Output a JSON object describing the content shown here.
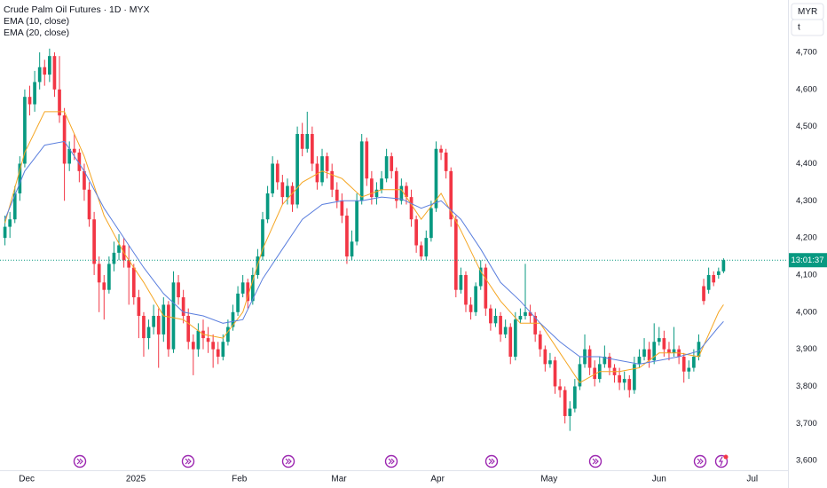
{
  "chart_data": {
    "type": "candlestick",
    "title": "Crude Palm Oil Futures · 1D · MYX",
    "currency": "MYR",
    "unit_button": "t",
    "countdown": "13:01:37",
    "up_color": "#089981",
    "down_color": "#f23645",
    "grid": false,
    "xlim": [
      -1,
      158
    ],
    "xticks": [
      {
        "value": 4.4,
        "label": "Dec"
      },
      {
        "value": 26.4,
        "label": "2025"
      },
      {
        "value": 47.3,
        "label": "Feb"
      },
      {
        "value": 67.4,
        "label": "Mar"
      },
      {
        "value": 87.3,
        "label": "Apr"
      },
      {
        "value": 109.8,
        "label": "May"
      },
      {
        "value": 132,
        "label": "Jun"
      },
      {
        "value": 150.8,
        "label": "Jul"
      }
    ],
    "ylim": [
      3574,
      4841
    ],
    "yticks": [
      {
        "value": 4700,
        "label": "4,700"
      },
      {
        "value": 4600,
        "label": "4,600"
      },
      {
        "value": 4500,
        "label": "4,500"
      },
      {
        "value": 4400,
        "label": "4,400"
      },
      {
        "value": 4300,
        "label": "4,300"
      },
      {
        "value": 4200,
        "label": "4,200"
      },
      {
        "value": 4100,
        "label": "4,100"
      },
      {
        "value": 4000,
        "label": "4,000"
      },
      {
        "value": 3900,
        "label": "3,900"
      },
      {
        "value": 3800,
        "label": "3,800"
      },
      {
        "value": 3700,
        "label": "3,700"
      },
      {
        "value": 3600,
        "label": "3,600"
      }
    ],
    "ohlc": [
      [
        4200,
        4260,
        4180,
        4230
      ],
      [
        4230,
        4270,
        4200,
        4250
      ],
      [
        4250,
        4340,
        4240,
        4320
      ],
      [
        4320,
        4420,
        4300,
        4400
      ],
      [
        4400,
        4600,
        4390,
        4580
      ],
      [
        4580,
        4610,
        4530,
        4560
      ],
      [
        4560,
        4650,
        4540,
        4620
      ],
      [
        4620,
        4700,
        4600,
        4660
      ],
      [
        4660,
        4680,
        4610,
        4640
      ],
      [
        4640,
        4710,
        4620,
        4690
      ],
      [
        4690,
        4700,
        4580,
        4600
      ],
      [
        4600,
        4690,
        4510,
        4530
      ],
      [
        4530,
        4550,
        4300,
        4400
      ],
      [
        4400,
        4460,
        4380,
        4440
      ],
      [
        4440,
        4480,
        4410,
        4430
      ],
      [
        4430,
        4440,
        4350,
        4380
      ],
      [
        4380,
        4400,
        4300,
        4330
      ],
      [
        4330,
        4350,
        4230,
        4250
      ],
      [
        4250,
        4270,
        4100,
        4130
      ],
      [
        4130,
        4150,
        4000,
        4080
      ],
      [
        4080,
        4100,
        3980,
        4060
      ],
      [
        4060,
        4150,
        4050,
        4130
      ],
      [
        4130,
        4190,
        4110,
        4160
      ],
      [
        4160,
        4210,
        4140,
        4180
      ],
      [
        4180,
        4200,
        4120,
        4140
      ],
      [
        4140,
        4180,
        4020,
        4120
      ],
      [
        4120,
        4130,
        4020,
        4040
      ],
      [
        4040,
        4060,
        3930,
        3990
      ],
      [
        3990,
        4000,
        3880,
        3930
      ],
      [
        3930,
        3980,
        3900,
        3960
      ],
      [
        3960,
        4020,
        3940,
        3990
      ],
      [
        3990,
        4010,
        3850,
        3940
      ],
      [
        3940,
        4040,
        3920,
        4020
      ],
      [
        4020,
        4030,
        3880,
        3900
      ],
      [
        3900,
        4110,
        3890,
        4080
      ],
      [
        4080,
        4100,
        4020,
        4040
      ],
      [
        4040,
        4060,
        3970,
        3990
      ],
      [
        3990,
        4010,
        3900,
        3920
      ],
      [
        3920,
        3940,
        3830,
        3900
      ],
      [
        3900,
        3970,
        3880,
        3950
      ],
      [
        3950,
        3980,
        3900,
        3930
      ],
      [
        3930,
        3960,
        3890,
        3920
      ],
      [
        3920,
        3940,
        3850,
        3900
      ],
      [
        3900,
        3920,
        3860,
        3880
      ],
      [
        3880,
        3940,
        3870,
        3920
      ],
      [
        3920,
        3980,
        3910,
        3960
      ],
      [
        3960,
        4020,
        3950,
        4000
      ],
      [
        4000,
        4070,
        3990,
        4050
      ],
      [
        4050,
        4100,
        4040,
        4080
      ],
      [
        4080,
        4090,
        4010,
        4030
      ],
      [
        4030,
        4120,
        4020,
        4100
      ],
      [
        4100,
        4170,
        4090,
        4150
      ],
      [
        4150,
        4270,
        4140,
        4250
      ],
      [
        4250,
        4340,
        4240,
        4320
      ],
      [
        4320,
        4420,
        4310,
        4400
      ],
      [
        4400,
        4410,
        4330,
        4350
      ],
      [
        4350,
        4370,
        4290,
        4310
      ],
      [
        4310,
        4360,
        4290,
        4340
      ],
      [
        4340,
        4350,
        4270,
        4290
      ],
      [
        4290,
        4500,
        4280,
        4480
      ],
      [
        4480,
        4510,
        4420,
        4440
      ],
      [
        4440,
        4540,
        4430,
        4480
      ],
      [
        4480,
        4500,
        4380,
        4400
      ],
      [
        4400,
        4420,
        4330,
        4350
      ],
      [
        4350,
        4440,
        4340,
        4420
      ],
      [
        4420,
        4430,
        4360,
        4380
      ],
      [
        4380,
        4400,
        4310,
        4330
      ],
      [
        4330,
        4350,
        4280,
        4300
      ],
      [
        4300,
        4320,
        4240,
        4260
      ],
      [
        4260,
        4280,
        4130,
        4150
      ],
      [
        4150,
        4220,
        4140,
        4190
      ],
      [
        4190,
        4320,
        4180,
        4300
      ],
      [
        4300,
        4480,
        4290,
        4460
      ],
      [
        4460,
        4470,
        4340,
        4360
      ],
      [
        4360,
        4380,
        4290,
        4310
      ],
      [
        4310,
        4350,
        4290,
        4330
      ],
      [
        4330,
        4380,
        4320,
        4360
      ],
      [
        4360,
        4440,
        4350,
        4420
      ],
      [
        4420,
        4430,
        4360,
        4380
      ],
      [
        4380,
        4390,
        4280,
        4300
      ],
      [
        4300,
        4360,
        4290,
        4340
      ],
      [
        4340,
        4350,
        4290,
        4310
      ],
      [
        4310,
        4330,
        4230,
        4250
      ],
      [
        4250,
        4260,
        4160,
        4180
      ],
      [
        4180,
        4190,
        4140,
        4150
      ],
      [
        4150,
        4220,
        4140,
        4200
      ],
      [
        4200,
        4300,
        4190,
        4280
      ],
      [
        4280,
        4460,
        4270,
        4440
      ],
      [
        4440,
        4450,
        4410,
        4430
      ],
      [
        4430,
        4440,
        4360,
        4380
      ],
      [
        4380,
        4390,
        4230,
        4250
      ],
      [
        4250,
        4260,
        4040,
        4060
      ],
      [
        4060,
        4120,
        4050,
        4100
      ],
      [
        4100,
        4110,
        4000,
        4020
      ],
      [
        4020,
        4040,
        3980,
        4000
      ],
      [
        4000,
        4080,
        3990,
        4070
      ],
      [
        4070,
        4140,
        4060,
        4120
      ],
      [
        4120,
        4130,
        3990,
        4010
      ],
      [
        4010,
        4020,
        3950,
        3970
      ],
      [
        3970,
        4010,
        3960,
        3990
      ],
      [
        3990,
        4000,
        3920,
        3940
      ],
      [
        3940,
        3980,
        3930,
        3960
      ],
      [
        3960,
        3970,
        3860,
        3880
      ],
      [
        3880,
        4000,
        3870,
        3980
      ],
      [
        3980,
        4010,
        3970,
        3990
      ],
      [
        3990,
        4130,
        3980,
        4000
      ],
      [
        4000,
        4020,
        3970,
        3990
      ],
      [
        3990,
        4000,
        3920,
        3940
      ],
      [
        3940,
        3950,
        3880,
        3900
      ],
      [
        3900,
        3910,
        3840,
        3860
      ],
      [
        3860,
        3890,
        3850,
        3870
      ],
      [
        3870,
        3880,
        3780,
        3800
      ],
      [
        3800,
        3820,
        3770,
        3790
      ],
      [
        3790,
        3800,
        3700,
        3720
      ],
      [
        3720,
        3760,
        3680,
        3740
      ],
      [
        3740,
        3820,
        3730,
        3800
      ],
      [
        3800,
        3880,
        3790,
        3860
      ],
      [
        3860,
        3940,
        3850,
        3900
      ],
      [
        3900,
        3910,
        3830,
        3850
      ],
      [
        3850,
        3870,
        3800,
        3820
      ],
      [
        3820,
        3880,
        3810,
        3860
      ],
      [
        3860,
        3910,
        3850,
        3880
      ],
      [
        3880,
        3890,
        3830,
        3850
      ],
      [
        3850,
        3860,
        3810,
        3830
      ],
      [
        3830,
        3850,
        3790,
        3810
      ],
      [
        3810,
        3840,
        3790,
        3820
      ],
      [
        3820,
        3830,
        3770,
        3790
      ],
      [
        3790,
        3880,
        3780,
        3860
      ],
      [
        3860,
        3900,
        3850,
        3880
      ],
      [
        3880,
        3930,
        3870,
        3900
      ],
      [
        3900,
        3920,
        3850,
        3870
      ],
      [
        3870,
        3970,
        3860,
        3920
      ],
      [
        3920,
        3960,
        3910,
        3930
      ],
      [
        3930,
        3950,
        3880,
        3900
      ],
      [
        3900,
        3920,
        3870,
        3890
      ],
      [
        3890,
        3960,
        3880,
        3900
      ],
      [
        3900,
        3910,
        3860,
        3880
      ],
      [
        3880,
        3890,
        3810,
        3840
      ],
      [
        3840,
        3870,
        3820,
        3850
      ],
      [
        3850,
        3900,
        3840,
        3880
      ],
      [
        3880,
        3940,
        3870,
        3920
      ],
      [
        4070,
        4090,
        4020,
        4030
      ],
      [
        4060,
        4120,
        4050,
        4100
      ],
      [
        4100,
        4110,
        4070,
        4080
      ],
      [
        4100,
        4120,
        4090,
        4110
      ],
      [
        4110,
        4145,
        4105,
        4140
      ]
    ],
    "series": [
      {
        "name": "EMA (10, close)",
        "color": "#f5a623",
        "x": [
          0,
          4,
          8,
          12,
          16,
          20,
          24,
          28,
          32,
          36,
          40,
          44,
          48,
          52,
          56,
          60,
          64,
          68,
          72,
          76,
          80,
          84,
          88,
          92,
          96,
          100,
          104,
          108,
          112,
          116,
          120,
          124,
          128,
          132,
          136,
          140,
          144,
          145
        ],
        "values": [
          4240,
          4430,
          4540,
          4540,
          4420,
          4260,
          4160,
          4080,
          3990,
          3980,
          3940,
          3930,
          4000,
          4170,
          4290,
          4350,
          4380,
          4360,
          4310,
          4330,
          4330,
          4250,
          4320,
          4220,
          4110,
          4030,
          3970,
          3970,
          3890,
          3810,
          3840,
          3840,
          3850,
          3890,
          3890,
          3880,
          4000,
          4020
        ]
      },
      {
        "name": "EMA (20, close)",
        "color": "#5b7fde",
        "x": [
          0,
          4,
          8,
          12,
          16,
          20,
          24,
          28,
          32,
          36,
          40,
          44,
          48,
          52,
          56,
          60,
          64,
          68,
          72,
          76,
          80,
          84,
          88,
          92,
          96,
          100,
          104,
          108,
          112,
          116,
          120,
          124,
          128,
          132,
          136,
          140,
          144,
          145
        ],
        "values": [
          4250,
          4380,
          4450,
          4460,
          4380,
          4280,
          4200,
          4120,
          4050,
          4000,
          3990,
          3970,
          3980,
          4090,
          4170,
          4250,
          4290,
          4300,
          4300,
          4310,
          4305,
          4280,
          4300,
          4250,
          4170,
          4080,
          4030,
          3970,
          3920,
          3880,
          3880,
          3870,
          3860,
          3870,
          3880,
          3895,
          3960,
          3975
        ]
      }
    ]
  }
}
